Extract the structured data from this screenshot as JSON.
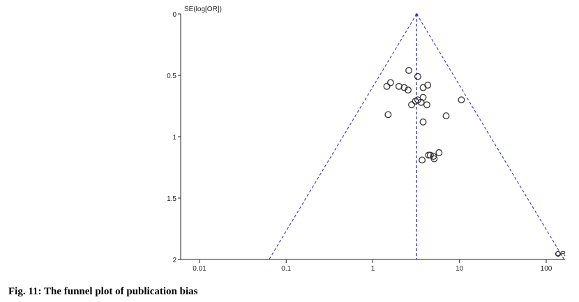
{
  "caption": "Fig. 11: The funnel plot of publication bias",
  "chart_data": {
    "type": "scatter",
    "subtype": "funnel",
    "x_scale": "log",
    "y_scale": "linear",
    "y_inverted": true,
    "xlabel": "OR",
    "ylabel": "SE(log[OR])",
    "xlim": [
      0.005,
      150
    ],
    "ylim": [
      0,
      2
    ],
    "x_ticks": [
      0.01,
      0.1,
      1,
      10,
      100
    ],
    "x_tick_labels": [
      "0.01",
      "0.1",
      "1",
      "10",
      "100"
    ],
    "y_ticks": [
      0,
      0.5,
      1,
      1.5,
      2
    ],
    "y_tick_labels": [
      "0",
      "0.5",
      "1",
      "1.5",
      "2"
    ],
    "pooled_or": 3.2,
    "funnel_line_color": "#3030e0",
    "marker_color": "#333333",
    "grid": false,
    "points": [
      {
        "or": 2.6,
        "se": 0.46
      },
      {
        "or": 3.3,
        "se": 0.51
      },
      {
        "or": 1.6,
        "se": 0.56
      },
      {
        "or": 1.45,
        "se": 0.59
      },
      {
        "or": 2.0,
        "se": 0.59
      },
      {
        "or": 2.3,
        "se": 0.6
      },
      {
        "or": 2.55,
        "se": 0.62
      },
      {
        "or": 4.3,
        "se": 0.58
      },
      {
        "or": 3.8,
        "se": 0.6
      },
      {
        "or": 3.8,
        "se": 0.68
      },
      {
        "or": 3.3,
        "se": 0.7
      },
      {
        "or": 3.1,
        "se": 0.71
      },
      {
        "or": 3.6,
        "se": 0.72
      },
      {
        "or": 2.8,
        "se": 0.74
      },
      {
        "or": 4.2,
        "se": 0.74
      },
      {
        "or": 10.5,
        "se": 0.7
      },
      {
        "or": 7.0,
        "se": 0.83
      },
      {
        "or": 1.5,
        "se": 0.82
      },
      {
        "or": 3.8,
        "se": 0.88
      },
      {
        "or": 4.4,
        "se": 1.15
      },
      {
        "or": 4.6,
        "se": 1.15
      },
      {
        "or": 5.0,
        "se": 1.16
      },
      {
        "or": 5.8,
        "se": 1.13
      },
      {
        "or": 3.7,
        "se": 1.19
      },
      {
        "or": 5.1,
        "se": 1.18
      }
    ]
  }
}
